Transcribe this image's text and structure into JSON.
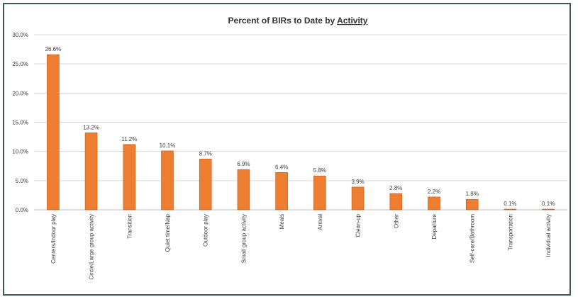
{
  "chart_data": {
    "type": "bar",
    "title_parts": [
      "Percent of BIRs to Date by ",
      "Activity"
    ],
    "xlabel": "",
    "ylabel": "",
    "ylim": [
      0,
      30
    ],
    "y_ticks": [
      "0.0%",
      "5.0%",
      "10.0%",
      "15.0%",
      "20.0%",
      "25.0%",
      "30.0%"
    ],
    "grid": true,
    "categories": [
      "Centers/Indoor play",
      "Circle/Large group activity",
      "Transition",
      "Quiet time/Nap",
      "Outdoor play",
      "Small group activity",
      "Meals",
      "Arrival",
      "Clean-up",
      "Other",
      "Departure",
      "Self-care/Bathroom",
      "Transportation",
      "Individual activity"
    ],
    "values": [
      26.6,
      13.2,
      11.2,
      10.1,
      8.7,
      6.9,
      6.4,
      5.8,
      3.9,
      2.8,
      2.2,
      1.8,
      0.1,
      0.1
    ],
    "data_labels": [
      "26.6%",
      "13.2%",
      "11.2%",
      "10.1%",
      "8.7%",
      "6.9%",
      "6.4%",
      "5.8%",
      "3.9%",
      "2.8%",
      "2.2%",
      "1.8%",
      "0.1%",
      "0.1%"
    ],
    "colors": {
      "bar_fill": "#ed7d31",
      "bar_stroke": "#c55a11",
      "grid": "#d9d9d9",
      "frame": "#3d5a50"
    }
  }
}
